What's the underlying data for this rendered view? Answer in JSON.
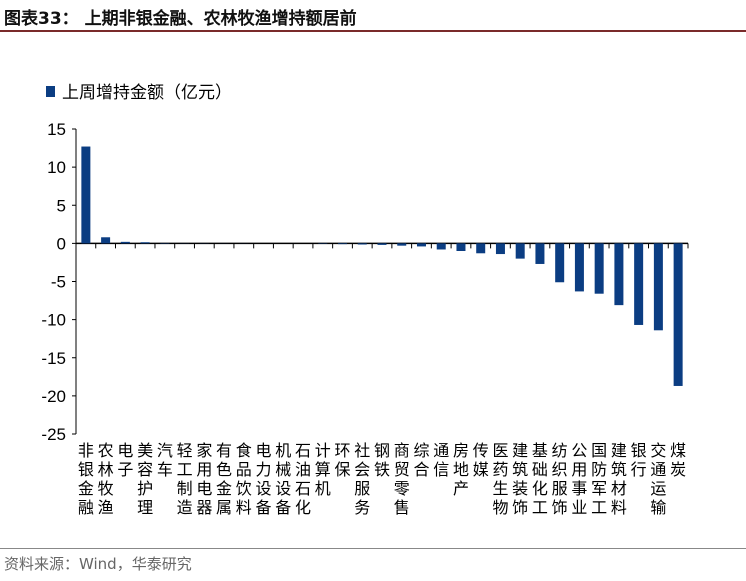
{
  "title": "图表33： 上期非银金融、农林牧渔增持额居前",
  "source": "资料来源：Wind，华泰研究",
  "chart_data": {
    "type": "bar",
    "legend": "上周增持金额（亿元）",
    "legend_position": "top-left",
    "categories": [
      "非银金融",
      "农林牧渔",
      "电子",
      "美容护理",
      "汽车",
      "轻工制造",
      "家用电器",
      "有色金属",
      "食品饮料",
      "电力设备",
      "机械设备",
      "石油石化",
      "计算机",
      "环保",
      "社会服务",
      "钢铁",
      "商贸零售",
      "综合",
      "通信",
      "房地产",
      "传媒",
      "医药生物",
      "建筑装饰",
      "基础化工",
      "纺织服饰",
      "公用事业",
      "国防军工",
      "建筑材料",
      "银行",
      "交通运输",
      "煤炭"
    ],
    "values": [
      12.7,
      0.8,
      0.2,
      0.15,
      0.05,
      0.02,
      0.02,
      0.01,
      0.01,
      0,
      0,
      0,
      -0.05,
      -0.1,
      -0.15,
      -0.2,
      -0.3,
      -0.4,
      -0.8,
      -1.0,
      -1.3,
      -1.4,
      -2.0,
      -2.7,
      -5.1,
      -6.3,
      -6.6,
      -8.1,
      -10.7,
      -11.4,
      -18.7
    ],
    "ylim": [
      -25,
      15
    ],
    "yticks": [
      15,
      10,
      5,
      0,
      -5,
      -10,
      -15,
      -20,
      -25
    ],
    "color": "#0b3d82"
  }
}
